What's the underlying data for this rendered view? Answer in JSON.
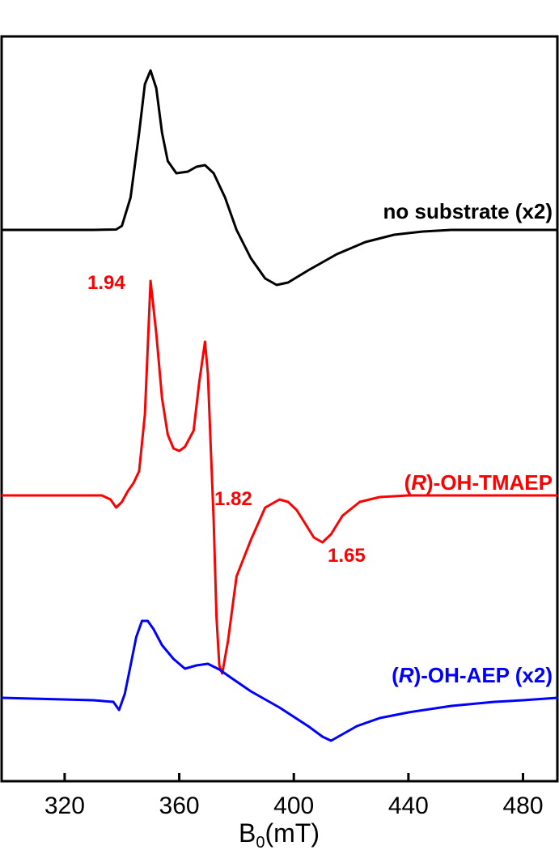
{
  "chart_data": {
    "type": "line",
    "xlabel": "B",
    "xlabel_sub": "0",
    "xlabel_unit": "(mT)",
    "xlim": [
      298,
      492
    ],
    "x_ticks": [
      320,
      360,
      400,
      440,
      480
    ],
    "y_axis_visible": false,
    "grid": false,
    "series": [
      {
        "name": "no substrate (x2)",
        "color": "#000000",
        "offset": 0,
        "points": [
          [
            298,
            0
          ],
          [
            330,
            0
          ],
          [
            338,
            0.5
          ],
          [
            340,
            5
          ],
          [
            343,
            40
          ],
          [
            346,
            120
          ],
          [
            348,
            180
          ],
          [
            350,
            197
          ],
          [
            352,
            175
          ],
          [
            354,
            120
          ],
          [
            356,
            85
          ],
          [
            359,
            70
          ],
          [
            363,
            72
          ],
          [
            366,
            78
          ],
          [
            369,
            80
          ],
          [
            372,
            70
          ],
          [
            376,
            40
          ],
          [
            380,
            0
          ],
          [
            385,
            -35
          ],
          [
            390,
            -60
          ],
          [
            394,
            -68
          ],
          [
            398,
            -65
          ],
          [
            405,
            -50
          ],
          [
            415,
            -30
          ],
          [
            425,
            -15
          ],
          [
            435,
            -6
          ],
          [
            445,
            -2
          ],
          [
            455,
            0
          ],
          [
            492,
            0
          ]
        ]
      },
      {
        "name": "(R)-OH-TMAEP",
        "name_prefix": "(",
        "name_italic": "R",
        "name_suffix": ")-OH-TMAEP",
        "color": "#ff0000",
        "offset": -330,
        "points": [
          [
            298,
            0
          ],
          [
            333,
            0
          ],
          [
            336,
            -5
          ],
          [
            338,
            -15
          ],
          [
            340,
            -8
          ],
          [
            342,
            5
          ],
          [
            344,
            15
          ],
          [
            346,
            30
          ],
          [
            348,
            100
          ],
          [
            350,
            265
          ],
          [
            352,
            200
          ],
          [
            354,
            120
          ],
          [
            356,
            75
          ],
          [
            358,
            58
          ],
          [
            360,
            55
          ],
          [
            362,
            60
          ],
          [
            365,
            80
          ],
          [
            367,
            140
          ],
          [
            369,
            190
          ],
          [
            370,
            150
          ],
          [
            371,
            60
          ],
          [
            372,
            -30
          ],
          [
            373,
            -150
          ],
          [
            374,
            -210
          ],
          [
            375,
            -220
          ],
          [
            377,
            -180
          ],
          [
            380,
            -100
          ],
          [
            385,
            -55
          ],
          [
            390,
            -15
          ],
          [
            395,
            -5
          ],
          [
            398,
            -8
          ],
          [
            401,
            -18
          ],
          [
            404,
            -35
          ],
          [
            407,
            -52
          ],
          [
            410,
            -58
          ],
          [
            413,
            -48
          ],
          [
            417,
            -25
          ],
          [
            423,
            -8
          ],
          [
            430,
            -2
          ],
          [
            440,
            0
          ],
          [
            492,
            0
          ]
        ]
      },
      {
        "name": "(R)-OH-AEP (x2)",
        "name_prefix": "(",
        "name_italic": "R",
        "name_suffix": ")-OH-AEP (x2)",
        "color": "#0000ff",
        "offset": -608,
        "points": [
          [
            298,
            0
          ],
          [
            330,
            -3
          ],
          [
            337,
            -5
          ],
          [
            339,
            -15
          ],
          [
            341,
            5
          ],
          [
            343,
            40
          ],
          [
            345,
            75
          ],
          [
            347,
            95
          ],
          [
            349,
            95
          ],
          [
            351,
            85
          ],
          [
            354,
            65
          ],
          [
            358,
            48
          ],
          [
            362,
            36
          ],
          [
            366,
            40
          ],
          [
            370,
            42
          ],
          [
            374,
            35
          ],
          [
            378,
            25
          ],
          [
            385,
            8
          ],
          [
            395,
            -12
          ],
          [
            405,
            -35
          ],
          [
            410,
            -48
          ],
          [
            413,
            -53
          ],
          [
            417,
            -45
          ],
          [
            422,
            -35
          ],
          [
            430,
            -25
          ],
          [
            440,
            -18
          ],
          [
            455,
            -10
          ],
          [
            470,
            -5
          ],
          [
            480,
            -3
          ],
          [
            492,
            0
          ]
        ]
      }
    ],
    "annotations": [
      {
        "text": "1.94",
        "color": "#ff0000",
        "x": 349
      },
      {
        "text": "1.82",
        "color": "#ff0000",
        "x": 372
      },
      {
        "text": "1.65",
        "color": "#ff0000",
        "x": 412
      }
    ]
  }
}
